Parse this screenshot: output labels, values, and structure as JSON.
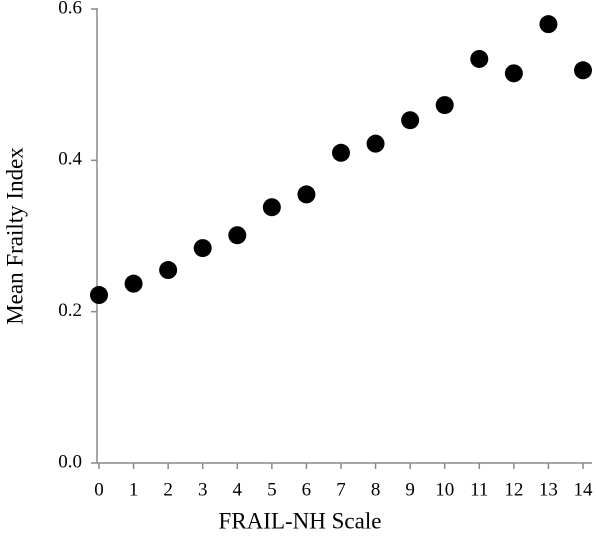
{
  "chart_data": {
    "type": "scatter",
    "x_label": "FRAIL-NH Scale",
    "y_label": "Mean Frailty Index",
    "x": [
      0,
      1,
      2,
      3,
      4,
      5,
      6,
      7,
      8,
      9,
      10,
      11,
      12,
      13,
      14
    ],
    "values": [
      0.222,
      0.237,
      0.255,
      0.284,
      0.301,
      0.338,
      0.355,
      0.41,
      0.422,
      0.453,
      0.473,
      0.534,
      0.515,
      0.58,
      0.519
    ],
    "color": "#000000",
    "xlim": [
      0,
      14
    ],
    "xticks": [
      0,
      1,
      2,
      3,
      4,
      5,
      6,
      7,
      8,
      9,
      10,
      11,
      12,
      13,
      14
    ],
    "ylim": [
      0,
      0.6
    ],
    "yticks": [
      {
        "value": 0,
        "label": "0.0"
      },
      0.2,
      0.4,
      0.6
    ],
    "grid": false
  }
}
